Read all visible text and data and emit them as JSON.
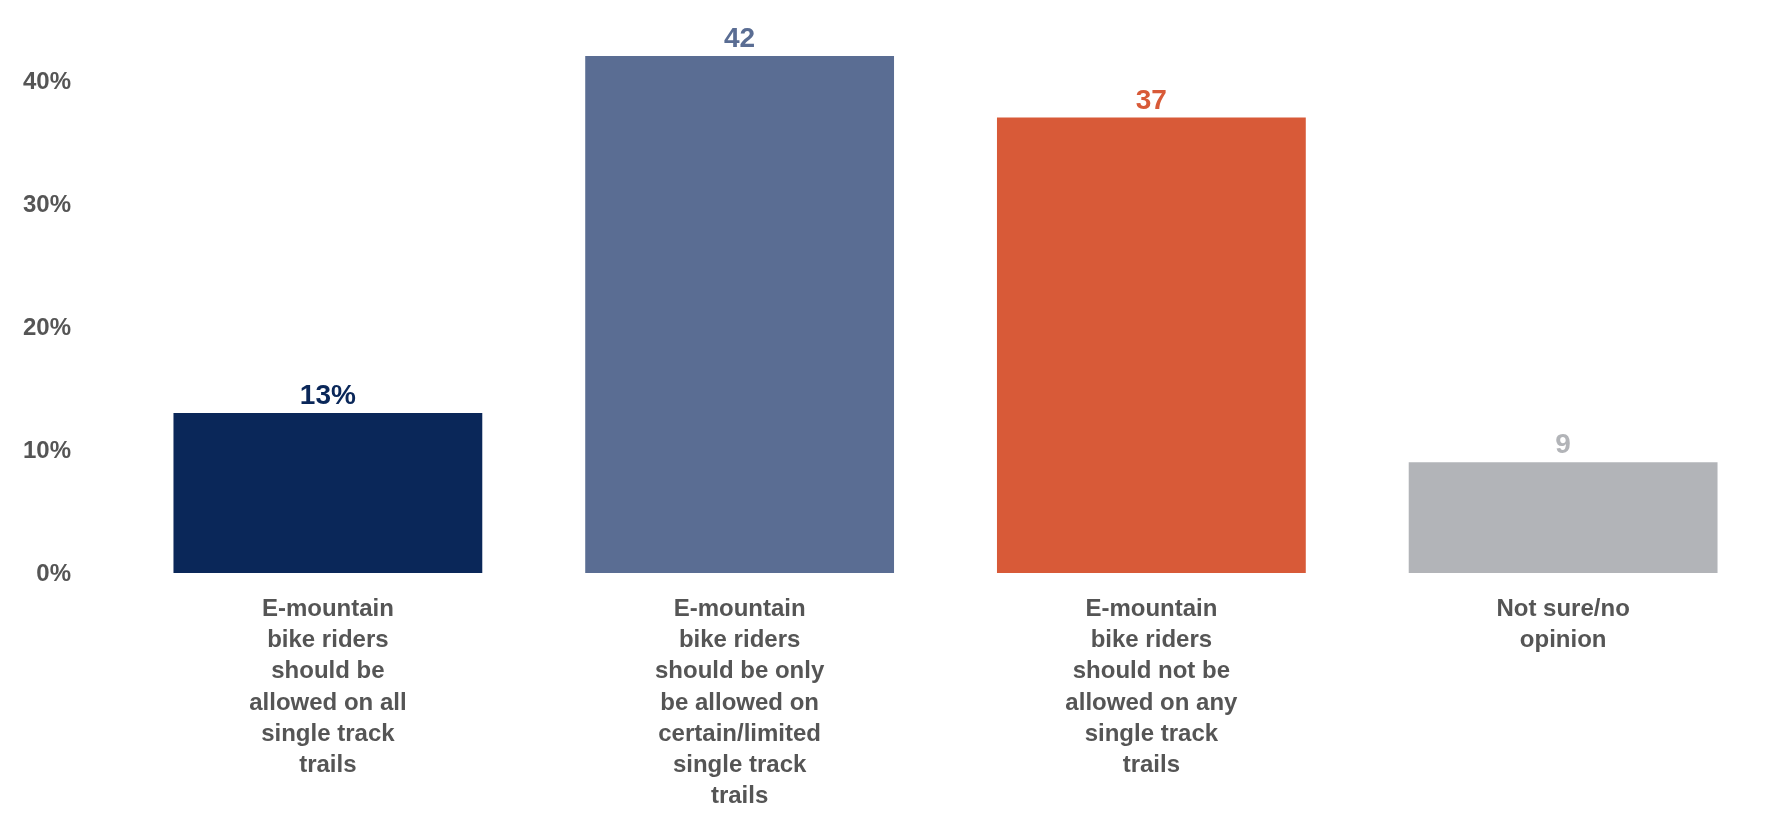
{
  "chart_data": {
    "type": "bar",
    "categories": [
      "E-mountain bike riders should be allowed on all single track trails",
      "E-mountain bike riders should be only be allowed on certain/limited single track trails",
      "E-mountain bike riders should not be allowed on any single track trails",
      "Not sure/no opinion"
    ],
    "values": [
      13,
      42,
      37,
      9
    ],
    "colors": [
      "#0a2759",
      "#5a6d93",
      "#d85a38",
      "#b2b4b8"
    ],
    "value_labels": [
      "13%",
      "42",
      "37",
      "9"
    ],
    "ylim": [
      0,
      42
    ],
    "yticks": [
      {
        "value": 0,
        "label": "0%"
      },
      {
        "value": 10,
        "label": "10%"
      },
      {
        "value": 20,
        "label": "20%"
      },
      {
        "value": 30,
        "label": "30%"
      },
      {
        "value": 40,
        "label": "40%"
      }
    ]
  }
}
